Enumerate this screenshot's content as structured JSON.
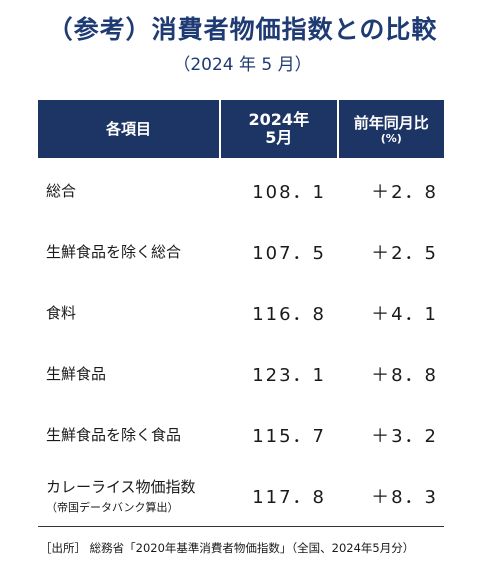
{
  "title": "（参考）消費者物価指数との比較",
  "subtitle": "（2024 年 5 月）",
  "table": {
    "headers": {
      "item": "各項目",
      "index_line1": "2024年",
      "index_line2": "5月",
      "yoy_line1": "前年同月比",
      "yoy_line2": "(%)"
    },
    "rows": [
      {
        "item": "総合",
        "note": "",
        "index": "108．1",
        "yoy": "＋2．8"
      },
      {
        "item": "生鮮食品を除く総合",
        "note": "",
        "index": "107．5",
        "yoy": "＋2．5"
      },
      {
        "item": "食料",
        "note": "",
        "index": "116．8",
        "yoy": "＋4．1"
      },
      {
        "item": "生鮮食品",
        "note": "",
        "index": "123．1",
        "yoy": "＋8．8"
      },
      {
        "item": "生鮮食品を除く食品",
        "note": "",
        "index": "115．7",
        "yoy": "＋3．2"
      },
      {
        "item": "カレーライス物価指数",
        "note": "（帝国データバンク算出）",
        "index": "117．8",
        "yoy": "＋8．3"
      }
    ]
  },
  "source": "［出所］ 総務省「2020年基準消費者物価指数」（全国、2024年5月分）"
}
